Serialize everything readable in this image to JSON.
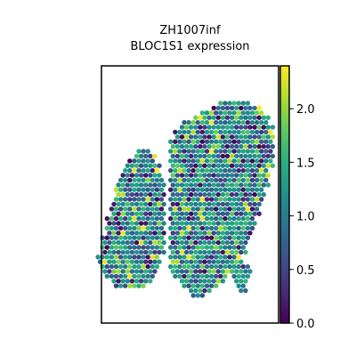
{
  "chart_data": {
    "type": "scatter",
    "title_line1": "ZH1007inf",
    "title_line2": "BLOC1S1 expression",
    "xlabel": "",
    "ylabel": "",
    "colormap": "viridis",
    "color_range": [
      0.0,
      2.4
    ],
    "colorbar": {
      "ticks": [
        0.0,
        0.5,
        1.0,
        1.5,
        2.0
      ],
      "tick_labels": [
        "0.0",
        "0.5",
        "1.0",
        "1.5",
        "2.0"
      ]
    },
    "grid": false,
    "legend": "colorbar-right",
    "spots": {
      "note_units": "array coordinates (col, row) of hexagonal spots",
      "regions": [
        {
          "name": "left-lobe",
          "rows": [
            [
              30,
              0,
              2
            ],
            [
              29,
              -1,
              3
            ],
            [
              28,
              -2,
              3
            ],
            [
              27,
              -3,
              4
            ],
            [
              26,
              -3,
              4
            ],
            [
              25,
              -4,
              4
            ],
            [
              24,
              -4,
              5
            ],
            [
              23,
              -5,
              5
            ],
            [
              22,
              -5,
              5
            ],
            [
              21,
              -5,
              5
            ],
            [
              20,
              -5,
              5
            ],
            [
              19,
              -6,
              5
            ],
            [
              18,
              -6,
              5
            ],
            [
              17,
              -6,
              5
            ],
            [
              16,
              -7,
              5
            ],
            [
              15,
              -7,
              5
            ],
            [
              14,
              -7,
              5
            ],
            [
              13,
              -7,
              5
            ],
            [
              12,
              -8,
              5
            ],
            [
              11,
              -8,
              5
            ],
            [
              10,
              -8,
              5
            ],
            [
              9,
              -8,
              5
            ],
            [
              8,
              -9,
              4
            ],
            [
              7,
              -9,
              4
            ],
            [
              6,
              -8,
              4
            ],
            [
              5,
              -8,
              3
            ],
            [
              4,
              -7,
              3
            ],
            [
              3,
              -6,
              2
            ],
            [
              2,
              -5,
              1
            ]
          ]
        },
        {
          "name": "right-lobe",
          "rows": [
            [
              40,
              18,
              24
            ],
            [
              39,
              16,
              26
            ],
            [
              38,
              14,
              27
            ],
            [
              37,
              12,
              28
            ],
            [
              36,
              10,
              28
            ],
            [
              35,
              9,
              29
            ],
            [
              34,
              8,
              29
            ],
            [
              33,
              8,
              29
            ],
            [
              32,
              7,
              29
            ],
            [
              31,
              7,
              29
            ],
            [
              30,
              7,
              29
            ],
            [
              29,
              7,
              29
            ],
            [
              28,
              7,
              29
            ],
            [
              27,
              7,
              29
            ],
            [
              26,
              7,
              28
            ],
            [
              25,
              7,
              28
            ],
            [
              24,
              7,
              28
            ],
            [
              23,
              7,
              28
            ],
            [
              22,
              7,
              27
            ],
            [
              21,
              7,
              27
            ],
            [
              20,
              7,
              27
            ],
            [
              19,
              7,
              26
            ],
            [
              18,
              7,
              26
            ],
            [
              17,
              7,
              26
            ],
            [
              16,
              7,
              25
            ],
            [
              15,
              7,
              25
            ],
            [
              14,
              7,
              25
            ],
            [
              13,
              7,
              24
            ],
            [
              12,
              7,
              24
            ],
            [
              11,
              7,
              23
            ],
            [
              10,
              7,
              23
            ],
            [
              9,
              7,
              23
            ],
            [
              8,
              7,
              22
            ],
            [
              7,
              7,
              22
            ],
            [
              6,
              7,
              21
            ],
            [
              5,
              7,
              20
            ],
            [
              4,
              8,
              19
            ],
            [
              3,
              9,
              18
            ],
            [
              2,
              10,
              17
            ],
            [
              1,
              11,
              15
            ],
            [
              0,
              12,
              14
            ]
          ]
        },
        {
          "name": "bottom-right-tail",
          "rows": [
            [
              6,
              21,
              24
            ],
            [
              5,
              21,
              24
            ],
            [
              4,
              21,
              24
            ],
            [
              3,
              21,
              23
            ],
            [
              2,
              22,
              23
            ],
            [
              1,
              22,
              23
            ]
          ]
        }
      ],
      "value_seed": 1007,
      "mean_expression": 1.1,
      "high_spot_fraction": 0.04,
      "zero_spot_fraction": 0.08
    }
  }
}
